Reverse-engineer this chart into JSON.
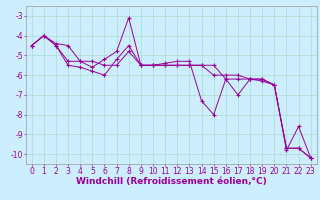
{
  "line1_x": [
    0,
    1,
    2,
    3,
    4,
    5,
    6,
    7,
    8,
    9,
    10,
    11,
    12,
    13,
    14,
    15,
    16,
    17,
    18,
    19,
    20,
    21,
    22,
    23
  ],
  "line1_y": [
    -4.5,
    -4.0,
    -4.4,
    -4.5,
    -5.3,
    -5.6,
    -5.2,
    -4.8,
    -3.1,
    -5.5,
    -5.5,
    -5.4,
    -5.3,
    -5.3,
    -7.3,
    -8.0,
    -6.2,
    -7.0,
    -6.2,
    -6.2,
    -6.5,
    -9.8,
    -8.6,
    -10.2
  ],
  "line2_x": [
    0,
    1,
    2,
    3,
    4,
    5,
    6,
    7,
    8,
    9,
    10,
    11,
    12,
    13,
    14,
    15,
    16,
    17,
    18,
    19,
    20,
    21,
    22,
    23
  ],
  "line2_y": [
    -4.5,
    -4.0,
    -4.5,
    -5.5,
    -5.6,
    -5.8,
    -6.0,
    -5.2,
    -4.5,
    -5.5,
    -5.5,
    -5.5,
    -5.5,
    -5.5,
    -5.5,
    -6.0,
    -6.0,
    -6.0,
    -6.2,
    -6.3,
    -6.5,
    -9.7,
    -9.7,
    -10.2
  ],
  "line3_x": [
    0,
    1,
    2,
    3,
    4,
    5,
    6,
    7,
    8,
    9,
    10,
    11,
    12,
    13,
    14,
    15,
    16,
    17,
    18,
    19,
    20,
    21,
    22,
    23
  ],
  "line3_y": [
    -4.5,
    -4.0,
    -4.5,
    -5.3,
    -5.3,
    -5.3,
    -5.5,
    -5.5,
    -4.8,
    -5.5,
    -5.5,
    -5.5,
    -5.5,
    -5.5,
    -5.5,
    -5.5,
    -6.2,
    -6.2,
    -6.2,
    -6.2,
    -6.5,
    -9.7,
    -9.7,
    -10.2
  ],
  "line_color": "#990099",
  "bg_color": "#cceeff",
  "grid_color": "#aaddcc",
  "ylim": [
    -10.5,
    -2.5
  ],
  "xlim": [
    -0.5,
    23.5
  ],
  "yticks": [
    -10,
    -9,
    -8,
    -7,
    -6,
    -5,
    -4,
    -3
  ],
  "xticks": [
    0,
    1,
    2,
    3,
    4,
    5,
    6,
    7,
    8,
    9,
    10,
    11,
    12,
    13,
    14,
    15,
    16,
    17,
    18,
    19,
    20,
    21,
    22,
    23
  ],
  "xlabel": "Windchill (Refroidissement éolien,°C)",
  "axis_fontsize": 5.5,
  "label_fontsize": 6.5
}
